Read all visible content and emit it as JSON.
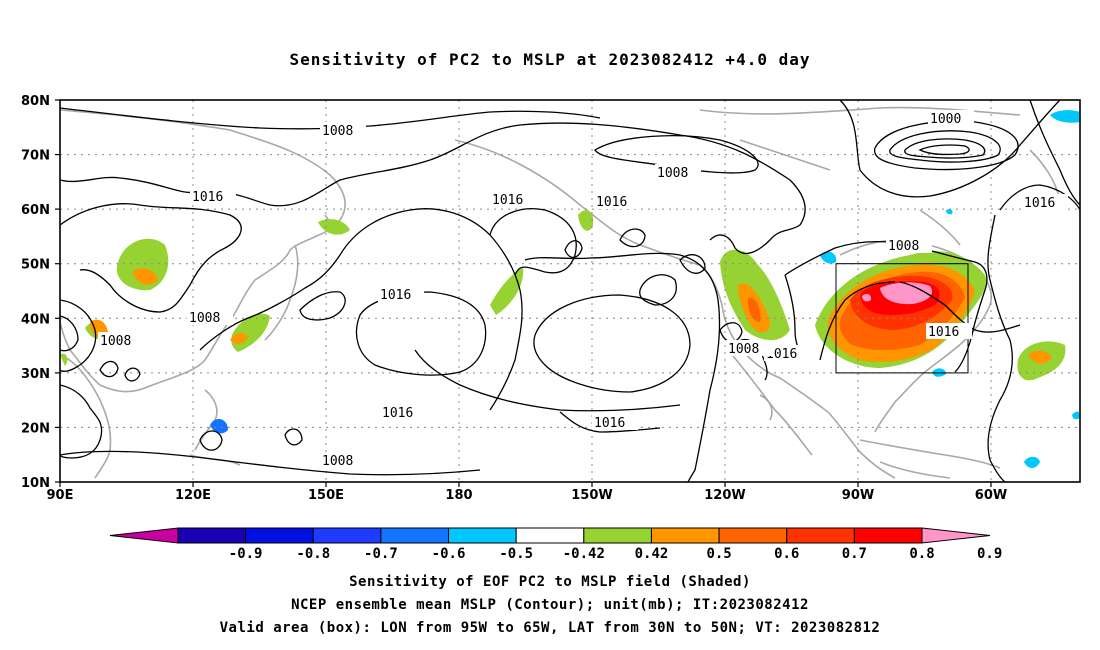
{
  "title": "Sensitivity of PC2 to MSLP at 2023082412 +4.0 day",
  "lat_labels": [
    "80N",
    "70N",
    "60N",
    "50N",
    "40N",
    "30N",
    "20N",
    "10N"
  ],
  "lon_labels": [
    "90E",
    "120E",
    "150E",
    "180",
    "150W",
    "120W",
    "90W",
    "60W"
  ],
  "contour_labels": [
    "1008",
    "1000",
    "1008",
    "1016",
    "1016",
    "1016",
    "1008",
    "1016",
    "1008",
    "1016",
    "1016",
    "1016",
    "1016",
    "1008",
    "1016",
    "1008",
    "1008"
  ],
  "colorbar": {
    "labels": [
      "-0.9",
      "-0.8",
      "-0.7",
      "-0.6",
      "-0.5",
      "-0.42",
      "0.42",
      "0.5",
      "0.6",
      "0.7",
      "0.8",
      "0.9"
    ],
    "colors": [
      "#c800a0",
      "#1a00b4",
      "#0010e0",
      "#1e3cff",
      "#1473ff",
      "#00c8ff",
      "#ffffff",
      "#96d232",
      "#ff9600",
      "#ff6400",
      "#ff3200",
      "#ff0000",
      "#ff96c8"
    ]
  },
  "valid_box": {
    "lon_from": "95W",
    "lon_to": "65W",
    "lat_from": "30N",
    "lat_to": "50N"
  },
  "captions": {
    "line1": "Sensitivity of EOF PC2 to MSLP field (Shaded)",
    "line2": "NCEP ensemble mean MSLP (Contour); unit(mb); IT:2023082412",
    "line3": "Valid area (box): LON from 95W to 65W, LAT from 30N to 50N; VT: 2023082812"
  }
}
